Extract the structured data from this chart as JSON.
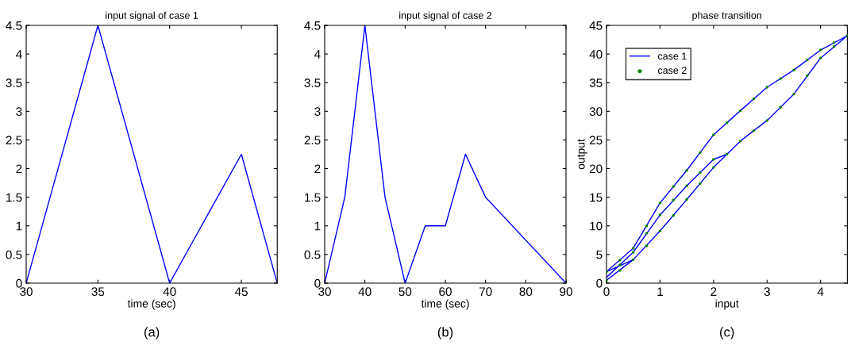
{
  "chart_data": [
    {
      "type": "line",
      "title": "input signal of case 1",
      "xlabel": "time (sec)",
      "annotations": [
        "(a)"
      ],
      "series": [
        {
          "color": "#0000ff",
          "x": [
            30,
            35,
            40,
            45,
            47.5
          ],
          "values": [
            0,
            4.5,
            0,
            2.25,
            0
          ]
        }
      ],
      "xlim": [
        30,
        47.5
      ],
      "xticks": [
        30,
        35,
        40,
        45
      ],
      "ylim": [
        0,
        4.5
      ],
      "yticks": [
        0,
        0.5,
        1,
        1.5,
        2,
        2.5,
        3,
        3.5,
        4,
        4.5
      ],
      "grid": false,
      "legend": false
    },
    {
      "type": "line",
      "title": "input signal of case 2",
      "xlabel": "time (sec)",
      "annotations": [
        "(b)"
      ],
      "series": [
        {
          "color": "#0000ff",
          "x": [
            30,
            35,
            40,
            45,
            50,
            55,
            60,
            65,
            70,
            90
          ],
          "values": [
            0,
            1.5,
            4.5,
            1.5,
            0,
            1,
            1,
            2.25,
            1.5,
            0
          ]
        }
      ],
      "xlim": [
        30,
        90
      ],
      "xticks": [
        30,
        40,
        50,
        60,
        70,
        80,
        90
      ],
      "ylim": [
        0,
        4.5
      ],
      "yticks": [
        0,
        0.5,
        1,
        1.5,
        2,
        2.5,
        3,
        3.5,
        4,
        4.5
      ],
      "grid": false,
      "legend": false
    },
    {
      "type": "line",
      "title": "phase transition",
      "xlabel": "input",
      "ylabel": "output",
      "annotations": [
        "(c)"
      ],
      "series": [
        {
          "name": "case 1",
          "color": "#0000ff",
          "x": [
            0,
            0.5,
            1,
            1.5,
            2,
            2.25,
            2.5,
            3,
            3.5,
            4,
            4.5,
            4,
            3.5,
            3,
            2.5,
            2,
            1.5,
            1,
            0.5,
            0,
            0.5,
            1,
            1.5,
            2,
            2.25,
            2,
            1.5,
            1,
            0.5,
            0
          ],
          "values": [
            0.5,
            4.1,
            9.1,
            14.6,
            20.2,
            22.5,
            24.8,
            28.4,
            33,
            39.3,
            43.2,
            40.7,
            37.2,
            34.2,
            30.1,
            25.9,
            19.7,
            14,
            6.1,
            2,
            4.1,
            9.1,
            14.6,
            20.2,
            22.5,
            21.6,
            17,
            11.9,
            5.4,
            1
          ]
        },
        {
          "name": "case 2",
          "type": "scatter",
          "marker": "circle",
          "color": "#008000",
          "x": [
            0,
            0.25,
            0.5,
            0.75,
            1,
            1.25,
            1.5,
            1.75,
            2,
            2.25,
            2.5,
            2.75,
            3,
            3.25,
            3.5,
            3.75,
            4,
            4.25,
            4.5,
            4.25,
            4,
            3.75,
            3.5,
            3.25,
            3,
            2.75,
            2.5,
            2.25,
            2,
            1.75,
            1.5,
            1.25,
            1,
            0.75,
            0.5,
            0.25,
            0,
            0.25,
            0.5,
            0.75,
            1,
            1.25,
            1.5,
            1.75,
            2
          ],
          "values": [
            0.5,
            2.2,
            4.1,
            6.5,
            9.1,
            11.8,
            14.6,
            17.4,
            20.2,
            22.5,
            24.8,
            26.6,
            28.4,
            30.7,
            33,
            36.2,
            39.3,
            41.3,
            43.2,
            42,
            40.7,
            39,
            37.2,
            35.7,
            34.2,
            32.2,
            30.1,
            28,
            25.9,
            22.8,
            19.7,
            16.9,
            14,
            10,
            6.1,
            4,
            2,
            3.2,
            5.4,
            8.7,
            11.9,
            14.5,
            17,
            19.3,
            21.6
          ]
        }
      ],
      "xlim": [
        0,
        4.5
      ],
      "xticks": [
        0,
        1,
        2,
        3,
        4
      ],
      "ylim": [
        0,
        45
      ],
      "yticks": [
        0,
        5,
        10,
        15,
        20,
        25,
        30,
        35,
        40,
        45
      ],
      "grid": false,
      "legend": "top left"
    }
  ]
}
